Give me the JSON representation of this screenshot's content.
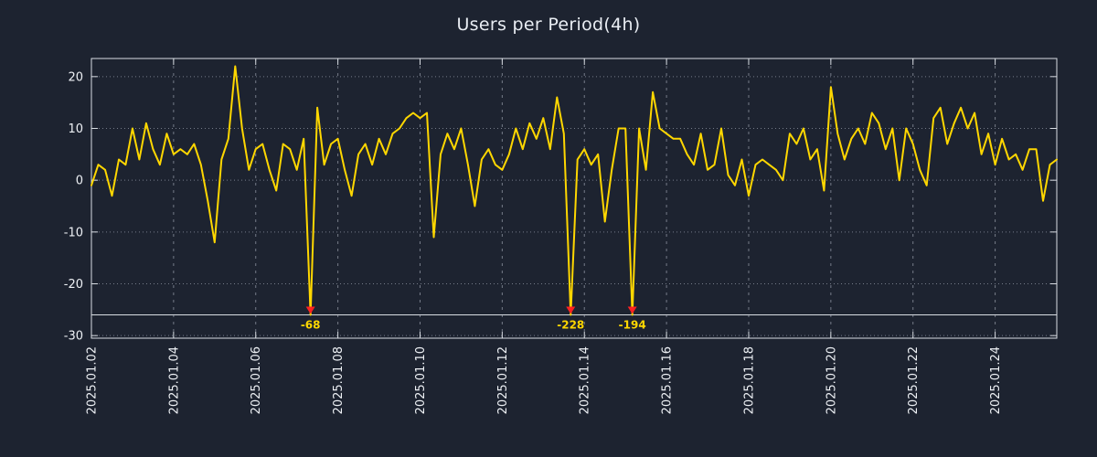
{
  "title": "Users per Period(4h)",
  "colors": {
    "background": "#1d2330",
    "line": "#ffd700",
    "marker": "#ff2222",
    "annotation": "#ffd700",
    "grid": "#8d93a0",
    "border": "#d9dde3",
    "clip_line": "#d9dde3",
    "text": "#eef1f5"
  },
  "chart_data": {
    "type": "line",
    "title": "Users per Period(4h)",
    "series_name": "Users",
    "x_start": "2025.01.02 00:00",
    "interval_hours": 4,
    "x_tick_labels": [
      "2025.01.02",
      "2025.01.04",
      "2025.01.06",
      "2025.01.08",
      "2025.01.10",
      "2025.01.12",
      "2025.01.14",
      "2025.01.16",
      "2025.01.18",
      "2025.01.20",
      "2025.01.22",
      "2025.01.24"
    ],
    "x_tick_step": 12,
    "y_ticks": [
      -30,
      -20,
      -10,
      0,
      10,
      20
    ],
    "ylim": [
      -30.5,
      23.5
    ],
    "clip_value": -26,
    "grid": true,
    "legend": "none",
    "values": [
      -1,
      3,
      2,
      -3,
      4,
      3,
      10,
      4,
      11,
      6,
      3,
      9,
      5,
      6,
      5,
      7,
      3,
      -4,
      -12,
      4,
      8,
      22,
      10,
      2,
      6,
      7,
      2,
      -2,
      7,
      6,
      2,
      8,
      -68,
      14,
      3,
      7,
      8,
      2,
      -3,
      5,
      7,
      3,
      8,
      5,
      9,
      10,
      12,
      13,
      12,
      13,
      -11,
      5,
      9,
      6,
      10,
      3,
      -5,
      4,
      6,
      3,
      2,
      5,
      10,
      6,
      11,
      8,
      12,
      6,
      16,
      9,
      -228,
      4,
      6,
      3,
      5,
      -8,
      2,
      10,
      10,
      -194,
      10,
      2,
      17,
      10,
      9,
      8,
      8,
      5,
      3,
      9,
      2,
      3,
      10,
      1,
      -1,
      4,
      -3,
      3,
      4,
      3,
      2,
      0,
      9,
      7,
      10,
      4,
      6,
      -2,
      18,
      9,
      4,
      8,
      10,
      7,
      13,
      11,
      6,
      10,
      0,
      10,
      7,
      2,
      -1,
      12,
      14,
      7,
      11,
      14,
      10,
      13,
      5,
      9,
      3,
      8,
      4,
      5,
      2,
      6,
      6,
      -4,
      3,
      4
    ],
    "annotations": [
      {
        "x_index": 32,
        "value": -68,
        "label": "-68"
      },
      {
        "x_index": 70,
        "value": -228,
        "label": "-228"
      },
      {
        "x_index": 79,
        "value": -194,
        "label": "-194"
      }
    ]
  }
}
